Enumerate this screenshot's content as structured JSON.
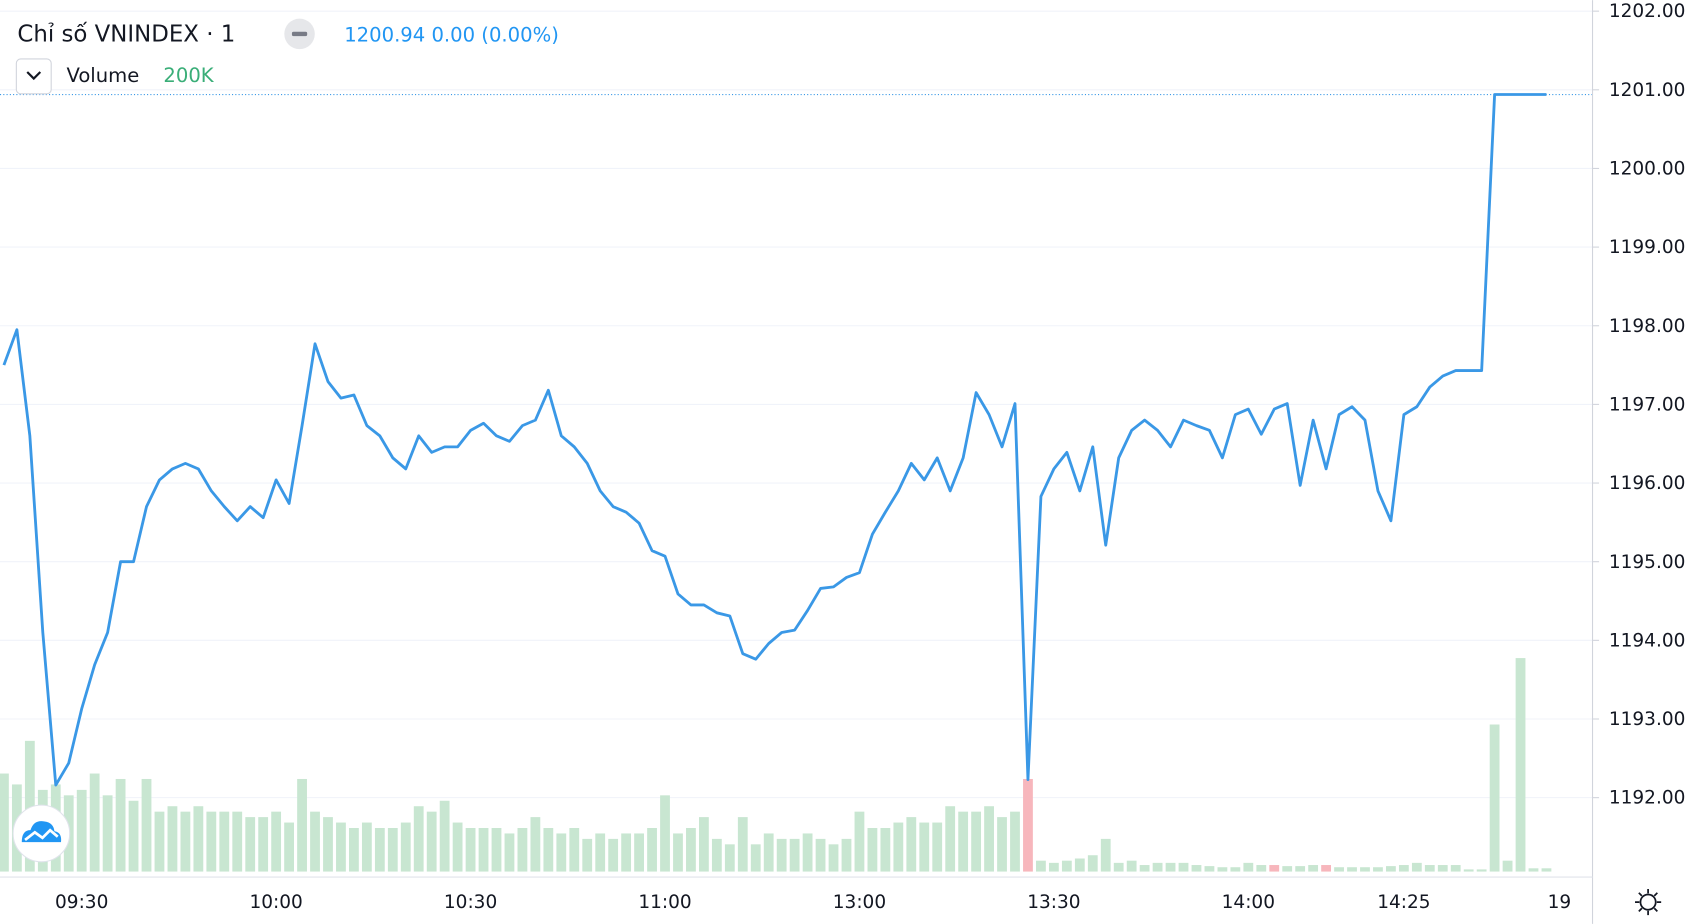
{
  "chart_data": {
    "type": "line",
    "title": "Chỉ số VNINDEX · 1",
    "last": "1200.94 0.00 (0.00%)",
    "categories": [
      null,
      null,
      null,
      null,
      null,
      null,
      "09:30",
      null,
      null,
      null,
      null,
      null,
      null,
      null,
      null,
      null,
      null,
      null,
      null,
      null,
      null,
      "10:00",
      null,
      null,
      null,
      null,
      null,
      null,
      null,
      null,
      null,
      null,
      null,
      null,
      null,
      null,
      "10:30",
      null,
      null,
      null,
      null,
      null,
      null,
      null,
      null,
      null,
      null,
      null,
      null,
      null,
      null,
      "11:00",
      null,
      null,
      null,
      null,
      null,
      null,
      null,
      null,
      null,
      null,
      null,
      null,
      null,
      null,
      "13:00",
      null,
      null,
      null,
      null,
      null,
      null,
      null,
      null,
      null,
      null,
      null,
      null,
      null,
      null,
      "13:30",
      null,
      null,
      null,
      null,
      null,
      null,
      null,
      null,
      null,
      null,
      null,
      null,
      null,
      null,
      "14:00",
      null,
      null,
      null,
      null,
      null,
      null,
      null,
      null,
      null,
      null,
      null,
      "14:25",
      null,
      null,
      null,
      null,
      null,
      null,
      null,
      null,
      null,
      null,
      null,
      "19"
    ],
    "series": [
      {
        "color": "#3a98e6",
        "values": [
          1197.5,
          1197.95,
          1196.6,
          1194.1,
          1192.16,
          1192.44,
          1193.13,
          1193.69,
          1194.1,
          1195.0,
          1195.0,
          1195.7,
          1196.04,
          1196.18,
          1196.25,
          1196.18,
          1195.9,
          1195.7,
          1195.52,
          1195.7,
          1195.56,
          1196.04,
          1195.74,
          1196.73,
          1197.77,
          1197.29,
          1197.08,
          1197.12,
          1196.73,
          1196.6,
          1196.32,
          1196.18,
          1196.6,
          1196.39,
          1196.46,
          1196.46,
          1196.67,
          1196.76,
          1196.6,
          1196.53,
          1196.73,
          1196.8,
          1197.18,
          1196.6,
          1196.46,
          1196.25,
          1195.9,
          1195.7,
          1195.63,
          1195.49,
          1195.14,
          1195.07,
          1194.59,
          1194.45,
          1194.45,
          1194.35,
          1194.31,
          1193.83,
          1193.76,
          1193.96,
          1194.1,
          1194.13,
          1194.38,
          1194.66,
          1194.68,
          1194.8,
          1194.86,
          1195.35,
          1195.63,
          1195.9,
          1196.25,
          1196.04,
          1196.32,
          1195.9,
          1196.32,
          1197.15,
          1196.87,
          1196.46,
          1197.01,
          1192.23,
          1195.83,
          1196.18,
          1196.39,
          1195.9,
          1196.46,
          1195.21,
          1196.32,
          1196.67,
          1196.8,
          1196.67,
          1196.46,
          1196.8,
          1196.73,
          1196.67,
          1196.32,
          1196.87,
          1196.94,
          1196.62,
          1196.94,
          1197.01,
          1195.97,
          1196.8,
          1196.18,
          1196.87,
          1196.97,
          1196.8,
          1195.9,
          1195.52,
          1196.87,
          1196.97,
          1197.22,
          1197.36,
          1197.43,
          1197.43,
          1197.43,
          1200.94,
          1200.94,
          1200.94,
          1200.94,
          1200.94,
          null
        ]
      }
    ],
    "volume": {
      "name": "Volume",
      "last_label": "200K",
      "ylim": [
        0,
        220
      ],
      "values": [
        90,
        80,
        120,
        75,
        80,
        70,
        75,
        90,
        70,
        85,
        65,
        85,
        55,
        60,
        55,
        60,
        55,
        55,
        55,
        50,
        50,
        55,
        45,
        85,
        55,
        50,
        45,
        40,
        45,
        40,
        40,
        45,
        60,
        55,
        65,
        45,
        40,
        40,
        40,
        35,
        40,
        50,
        40,
        35,
        40,
        30,
        35,
        30,
        35,
        35,
        40,
        70,
        35,
        40,
        50,
        30,
        25,
        50,
        25,
        35,
        30,
        30,
        35,
        30,
        25,
        30,
        55,
        40,
        40,
        45,
        50,
        45,
        45,
        60,
        55,
        55,
        60,
        50,
        55,
        85,
        10,
        8,
        10,
        12,
        15,
        30,
        8,
        10,
        6,
        8,
        8,
        8,
        6,
        5,
        4,
        4,
        8,
        6,
        6,
        5,
        5,
        6,
        6,
        4,
        4,
        4,
        4,
        5,
        6,
        8,
        6,
        6,
        6,
        2,
        2,
        135,
        10,
        196,
        3,
        3,
        null
      ],
      "colors": [
        "#c8e6d1",
        "#c8e6d1",
        "#c8e6d1",
        "#c8e6d1",
        "#c8e6d1",
        "#c8e6d1",
        "#c8e6d1",
        "#c8e6d1",
        "#c8e6d1",
        "#c8e6d1",
        "#c8e6d1",
        "#c8e6d1",
        "#c8e6d1",
        "#c8e6d1",
        "#c8e6d1",
        "#c8e6d1",
        "#c8e6d1",
        "#c8e6d1",
        "#c8e6d1",
        "#c8e6d1",
        "#c8e6d1",
        "#c8e6d1",
        "#c8e6d1",
        "#c8e6d1",
        "#c8e6d1",
        "#c8e6d1",
        "#c8e6d1",
        "#c8e6d1",
        "#c8e6d1",
        "#c8e6d1",
        "#c8e6d1",
        "#c8e6d1",
        "#c8e6d1",
        "#c8e6d1",
        "#c8e6d1",
        "#c8e6d1",
        "#c8e6d1",
        "#c8e6d1",
        "#c8e6d1",
        "#c8e6d1",
        "#c8e6d1",
        "#c8e6d1",
        "#c8e6d1",
        "#c8e6d1",
        "#c8e6d1",
        "#c8e6d1",
        "#c8e6d1",
        "#c8e6d1",
        "#c8e6d1",
        "#c8e6d1",
        "#c8e6d1",
        "#c8e6d1",
        "#c8e6d1",
        "#c8e6d1",
        "#c8e6d1",
        "#c8e6d1",
        "#c8e6d1",
        "#c8e6d1",
        "#c8e6d1",
        "#c8e6d1",
        "#c8e6d1",
        "#c8e6d1",
        "#c8e6d1",
        "#c8e6d1",
        "#c8e6d1",
        "#c8e6d1",
        "#c8e6d1",
        "#c8e6d1",
        "#c8e6d1",
        "#c8e6d1",
        "#c8e6d1",
        "#c8e6d1",
        "#c8e6d1",
        "#c8e6d1",
        "#c8e6d1",
        "#c8e6d1",
        "#c8e6d1",
        "#c8e6d1",
        "#c8e6d1",
        "#f7b6bc",
        "#c8e6d1",
        "#c8e6d1",
        "#c8e6d1",
        "#c8e6d1",
        "#c8e6d1",
        "#c8e6d1",
        "#c8e6d1",
        "#c8e6d1",
        "#c8e6d1",
        "#c8e6d1",
        "#c8e6d1",
        "#c8e6d1",
        "#c8e6d1",
        "#c8e6d1",
        "#c8e6d1",
        "#c8e6d1",
        "#c8e6d1",
        "#c8e6d1",
        "#f7b6bc",
        "#c8e6d1",
        "#c8e6d1",
        "#c8e6d1",
        "#f7b6bc",
        "#c8e6d1",
        "#c8e6d1",
        "#c8e6d1",
        "#c8e6d1",
        "#c8e6d1",
        "#c8e6d1",
        "#c8e6d1",
        "#c8e6d1",
        "#c8e6d1",
        "#c8e6d1",
        "#c8e6d1",
        "#c8e6d1",
        "#c8e6d1",
        "#c8e6d1",
        "#c8e6d1",
        "#c8e6d1",
        "#c8e6d1",
        "#c8e6d1"
      ]
    },
    "ylim": [
      1191.06,
      1202.14
    ],
    "yticks": [
      {
        "value": 1192,
        "label": "1192.00"
      },
      {
        "value": 1193,
        "label": "1193.00"
      },
      {
        "value": 1194,
        "label": "1194.00"
      },
      {
        "value": 1195,
        "label": "1195.00"
      },
      {
        "value": 1196,
        "label": "1196.00"
      },
      {
        "value": 1197,
        "label": "1197.00"
      },
      {
        "value": 1198,
        "label": "1198.00"
      },
      {
        "value": 1199,
        "label": "1199.00"
      },
      {
        "value": 1200,
        "label": "1200.00"
      },
      {
        "value": 1201,
        "label": "1201.00"
      },
      {
        "value": 1202,
        "label": "1202.00"
      }
    ],
    "grid": true
  }
}
